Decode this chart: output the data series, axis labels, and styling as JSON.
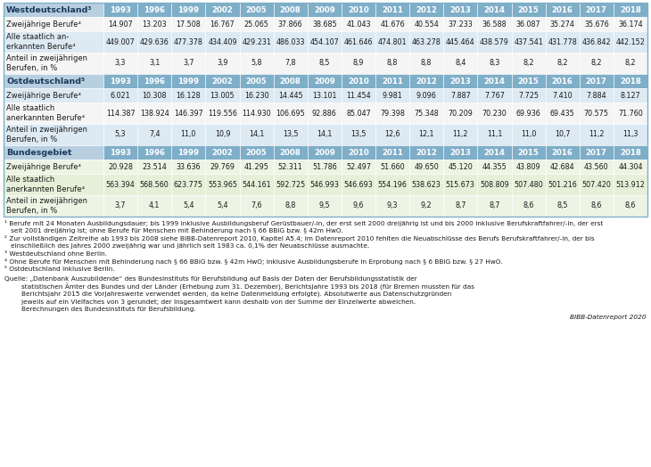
{
  "columns": [
    "1993",
    "1996",
    "1999",
    "2002",
    "2005",
    "2008",
    "2009",
    "2010",
    "2011",
    "2012",
    "2013",
    "2014",
    "2015",
    "2016",
    "2017",
    "2018"
  ],
  "sections": [
    {
      "header": "Westdeutschland³",
      "header_bg": "#b8cfe0",
      "col_hdr_bg": "#7faec8",
      "rows": [
        {
          "label": "Zweijährige Berufe⁴",
          "values": [
            "14.907",
            "13.203",
            "17.508",
            "16.767",
            "25.065",
            "37.866",
            "38.685",
            "41.043",
            "41.676",
            "40.554",
            "37.233",
            "36.588",
            "36.087",
            "35.274",
            "35.676",
            "36.174"
          ],
          "bg": "#f5f5f5",
          "n_lines": 1
        },
        {
          "label": "Alle staatlich an-\nerkannten Berufe⁴",
          "values": [
            "449.007",
            "429.636",
            "477.378",
            "434.409",
            "429.231",
            "486.033",
            "454.107",
            "461.646",
            "474.801",
            "463.278",
            "445.464",
            "438.579",
            "437.541",
            "431.778",
            "436.842",
            "442.152"
          ],
          "bg": "#ddeaf4",
          "n_lines": 2
        },
        {
          "label": "Anteil in zweijährigen\nBerufen, in %",
          "values": [
            "3,3",
            "3,1",
            "3,7",
            "3,9",
            "5,8",
            "7,8",
            "8,5",
            "8,9",
            "8,8",
            "8,8",
            "8,4",
            "8,3",
            "8,2",
            "8,2",
            "8,2",
            "8,2"
          ],
          "bg": "#f5f5f5",
          "n_lines": 2
        }
      ]
    },
    {
      "header": "Ostdeutschland⁵",
      "header_bg": "#b8cfe0",
      "col_hdr_bg": "#7faec8",
      "rows": [
        {
          "label": "Zweijährige Berufe⁴",
          "values": [
            "6.021",
            "10.308",
            "16.128",
            "13.005",
            "16.230",
            "14.445",
            "13.101",
            "11.454",
            "9.981",
            "9.096",
            "7.887",
            "7.767",
            "7.725",
            "7.410",
            "7.884",
            "8.127"
          ],
          "bg": "#ddeaf4",
          "n_lines": 1
        },
        {
          "label": "Alle staatlich\nanerkannten Berufe⁴",
          "values": [
            "114.387",
            "138.924",
            "146.397",
            "119.556",
            "114.930",
            "106.695",
            "92.886",
            "85.047",
            "79.398",
            "75.348",
            "70.209",
            "70.230",
            "69.936",
            "69.435",
            "70.575",
            "71.760"
          ],
          "bg": "#f5f5f5",
          "n_lines": 2
        },
        {
          "label": "Anteil in zweijährigen\nBerufen, in %",
          "values": [
            "5,3",
            "7,4",
            "11,0",
            "10,9",
            "14,1",
            "13,5",
            "14,1",
            "13,5",
            "12,6",
            "12,1",
            "11,2",
            "11,1",
            "11,0",
            "10,7",
            "11,2",
            "11,3"
          ],
          "bg": "#ddeaf4",
          "n_lines": 2
        }
      ]
    },
    {
      "header": "Bundesgebiet",
      "header_bg": "#b8cfe0",
      "col_hdr_bg": "#7faec8",
      "rows": [
        {
          "label": "Zweijährige Berufe⁴",
          "values": [
            "20.928",
            "23.514",
            "33.636",
            "29.769",
            "41.295",
            "52.311",
            "51.786",
            "52.497",
            "51.660",
            "49.650",
            "45.120",
            "44.355",
            "43.809",
            "42.684",
            "43.560",
            "44.304"
          ],
          "bg": "#eef4e4",
          "n_lines": 1
        },
        {
          "label": "Alle staatlich\nanerkannten Berufe⁴",
          "values": [
            "563.394",
            "568.560",
            "623.775",
            "553.965",
            "544.161",
            "592.725",
            "546.993",
            "546.693",
            "554.196",
            "538.623",
            "515.673",
            "508.809",
            "507.480",
            "501.216",
            "507.420",
            "513.912"
          ],
          "bg": "#e6f0d8",
          "n_lines": 2
        },
        {
          "label": "Anteil in zweijährigen\nBerufen, in %",
          "values": [
            "3,7",
            "4,1",
            "5,4",
            "5,4",
            "7,6",
            "8,8",
            "9,5",
            "9,6",
            "9,3",
            "9,2",
            "8,7",
            "8,7",
            "8,6",
            "8,5",
            "8,6",
            "8,6"
          ],
          "bg": "#eef4e4",
          "n_lines": 2
        }
      ]
    }
  ],
  "footnote_lines": [
    [
      {
        "text": "¹",
        "bold": false
      },
      {
        "text": " Berufe mit 24 Monaten Ausbildungsdauer; bis 1999 inklusive Ausbildungsberuf Gerüstbauer/-in, der erst seit 2000 dreijährig ist und bis 2000 inklusive Berufskraftfahrer/-in, der erst",
        "bold": false
      }
    ],
    [
      {
        "text": "   seit 2001 dreijährig ist; ohne Berufe für Menschen mit Behinderung nach § 66 BBiG bzw. § 42m HwO.",
        "bold": false
      }
    ],
    [
      {
        "text": "²",
        "bold": false
      },
      {
        "text": " Zur vollständigen Zeitreihe ab 1993 bis 2008 siehe BIBB-Datenreport 2010, Kapitel A5.4; im Datenreport 2010 fehlten die Neuabschlüsse des Berufs Berufskraftfahrer/-in, der bis",
        "bold": false
      }
    ],
    [
      {
        "text": "   einschließlich des Jahres 2000 zweijährig war und jährlich seit 1983 ca. 0,1% der Neuabschlüsse ausmachte.",
        "bold": false
      }
    ],
    [
      {
        "text": "³",
        "bold": false
      },
      {
        "text": " Westdeutschland ohne Berlin.",
        "bold": false
      }
    ],
    [
      {
        "text": "⁴",
        "bold": false
      },
      {
        "text": " Ohne Berufe für Menschen mit Behinderung nach § 66 BBiG bzw. § 42m HwO; inklusive Ausbildungsberufe in Erprobung nach § 6 BBiG bzw. § 27 HwO.",
        "bold": false
      }
    ],
    [
      {
        "text": "⁵",
        "bold": false
      },
      {
        "text": " Ostdeutschland inklusive Berlin.",
        "bold": false
      }
    ],
    [],
    [
      {
        "text": "Quelle: „Datenbank Auszubildende“ des Bundesinstituts für Berufsbildung auf Basis der Daten der Berufsbildungsstatistik der",
        "bold": false
      }
    ],
    [
      {
        "text": "        statistischen Ämter des Bundes und der Länder (Erhebung zum 31. Dezember), Berichtsjahre 1993 bis 2018 (für Bremen mussten für das",
        "bold": false
      }
    ],
    [
      {
        "text": "        Berichtsjahr 2015 die Vorjahreswerte verwendet werden, da keine Datenmeldung erfolgte). Absolutwerte aus Datenschutzgründen",
        "bold": false
      }
    ],
    [
      {
        "text": "        jeweils auf ein Vielfaches von 3 gerundet; der Insgesamtwert kann deshalb von der Summe der Einzelwerte abweichen.",
        "bold": false
      }
    ],
    [
      {
        "text": "        Berechnungen des Bundesinstituts für Berufsbildung.",
        "bold": false
      }
    ]
  ],
  "bibb_label": "BIBB-Datenreport 2020",
  "header_text_color": "#1a3a5c",
  "col_hdr_text_color": "#ffffff",
  "data_text_color": "#1a1a1a",
  "border_color": "#ffffff",
  "outer_border_color": "#7faec8"
}
